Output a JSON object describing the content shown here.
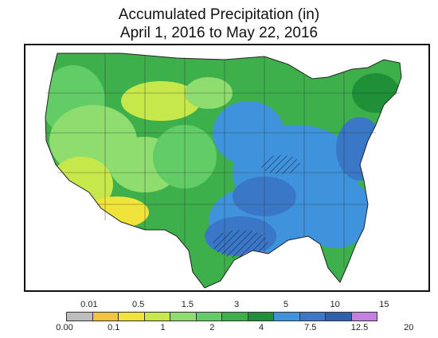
{
  "title": {
    "line1": "Accumulated Precipitation (in)",
    "line2": "April 1, 2016 to May 22, 2016"
  },
  "legend": {
    "colors": [
      "#bdbdbd",
      "#f5c242",
      "#f0e43a",
      "#c7e84a",
      "#8fdc6f",
      "#62cc67",
      "#3eb04b",
      "#1f8f38",
      "#3e93dc",
      "#3a78c7",
      "#2f5fad",
      "#c47fe3"
    ],
    "top_labels": [
      "0.01",
      "0.5",
      "1.5",
      "3",
      "5",
      "10",
      "15"
    ],
    "bottom_labels": [
      "0.00",
      "0.1",
      "1",
      "2",
      "4",
      "7.5",
      "12.5",
      "20"
    ]
  }
}
